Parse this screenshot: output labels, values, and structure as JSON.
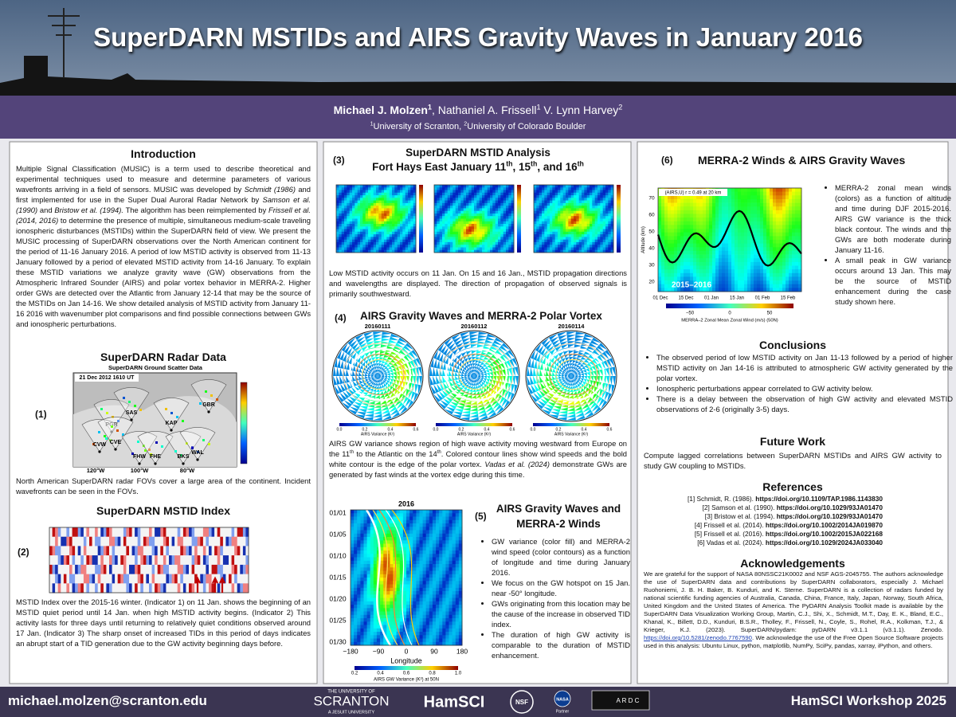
{
  "header": {
    "title": "SuperDARN MSTIDs and AIRS Gravity Waves in January 2016",
    "authors": [
      {
        "t": "Michael J. Molzen",
        "b": true
      },
      {
        "t": "1",
        "sup": true,
        "b": true
      },
      {
        "t": ", Nathaniel A. Frissell"
      },
      {
        "t": "1",
        "sup": true
      },
      {
        "t": " V. Lynn Harvey"
      },
      {
        "t": "2",
        "sup": true
      }
    ],
    "affiliations": [
      {
        "t": "1",
        "sup": true
      },
      {
        "t": "University of Scranton, "
      },
      {
        "t": "2",
        "sup": true
      },
      {
        "t": "University of Colorado Boulder"
      }
    ]
  },
  "intro": {
    "heading": "Introduction",
    "text": [
      {
        "t": "Multiple Signal Classification (MUSIC) is a term used to describe theoretical and experimental techniques used to measure and determine parameters of various wavefronts arriving in a field of sensors. MUSIC was developed by "
      },
      {
        "t": "Schmidt (1986)",
        "i": true
      },
      {
        "t": " and first implemented for use in the Super Dual Auroral Radar Network by "
      },
      {
        "t": "Samson et al. (1990)",
        "i": true
      },
      {
        "t": " and "
      },
      {
        "t": "Bristow et al. (1994).",
        "i": true
      },
      {
        "t": " The algorithm has been reimplemented by "
      },
      {
        "t": "Frissell et al. (2014, 2016)",
        "i": true
      },
      {
        "t": " to determine the presence of multiple, simultaneous medium-scale traveling ionospheric disturbances (MSTIDs) within the SuperDARN field of view. We present the MUSIC processing of SuperDARN observations over the North American continent for the period of 11-16 January 2016. A period of low MSTID activity is observed from 11-13 January followed by a period of elevated MSTID activity from 14-16 January. To explain these MSTID variations we analyze gravity wave (GW) observations from the Atmospheric Infrared Sounder (AIRS) and polar vortex behavior in MERRA-2. Higher order GWs are detected over the Atlantic from January 12-14 that may be the source of the MSTIDs on Jan 14-16. We show detailed analysis of MSTID activity from January 11-16 2016 with wavenumber plot comparisons and find possible connections between GWs and ionospheric perturbations."
      }
    ]
  },
  "radar": {
    "heading": "SuperDARN Radar Data",
    "label": "(1)",
    "figure": {
      "title": "SuperDARN Ground Scatter Data",
      "time": "21 Dec 2012 1610 UT",
      "radars": [
        "PGR",
        "SAS",
        "KAP",
        "GBR",
        "CVW",
        "CVE",
        "FHW",
        "FHE",
        "BKS",
        "WAL"
      ],
      "longitudes": [
        "120°W",
        "100°W",
        "80°W"
      ]
    },
    "caption": "North American SuperDARN radar FOVs cover a large area of the continent. Incident wavefronts can be seen in the FOVs."
  },
  "index": {
    "heading": "SuperDARN MSTID Index",
    "label": "(2)",
    "caption": "MSTID Index over the 2015-16 winter. (Indicator 1) on 11 Jan. shows the beginning of an MSTID quiet period until 14 Jan. when high MSTID activity begins. (Indicator 2) This activity lasts for three days until returning to relatively quiet conditions observed around 17 Jan. (Indicator 3) The sharp onset of increased TIDs in this period of days indicates an abrupt start of a TID generation due to the GW activity beginning days before."
  },
  "analysis": {
    "label": "(3)",
    "heading": "SuperDARN MSTID Analysis",
    "heading2": [
      {
        "t": "Fort Hays East January 11"
      },
      {
        "t": "th",
        "sup": true
      },
      {
        "t": ", 15"
      },
      {
        "t": "th",
        "sup": true
      },
      {
        "t": ", and 16"
      },
      {
        "t": "th",
        "sup": true
      }
    ],
    "text": "Low MSTID activity occurs on 11 Jan. On 15 and 16 Jan., MSTID propagation directions and wavelengths are displayed. The direction of propagation of observed signals is primarily southwestward."
  },
  "vortex": {
    "label": "(4)",
    "heading": "AIRS Gravity Waves and MERRA-2 Polar Vortex",
    "dates": [
      "20160111",
      "20160112",
      "20160114"
    ],
    "colorbar_ticks": [
      "0.0",
      "0.2",
      "0.4",
      "0.6"
    ],
    "colorbar_label": "AIRS Variance (K²)",
    "text": [
      {
        "t": "AIRS GW variance shows region of high wave activity moving westward from Europe on the 11"
      },
      {
        "t": "th",
        "sup": true
      },
      {
        "t": " to the Atlantic on the 14"
      },
      {
        "t": "th",
        "sup": true
      },
      {
        "t": ". Colored contour lines show wind speeds and the bold white contour is the edge of the polar vortex. "
      },
      {
        "t": "Vadas et al. (2024)",
        "i": true
      },
      {
        "t": " demonstrate GWs are generated by fast winds at the vortex edge during this time."
      }
    ]
  },
  "hovmoller": {
    "year": "2016",
    "dates": [
      "01/01",
      "01/05",
      "01/10",
      "01/15",
      "01/20",
      "01/25",
      "01/30"
    ],
    "longitudes": [
      "−180",
      "−90",
      "0",
      "90",
      "180"
    ],
    "x_label": "Longitude",
    "colorbar_ticks": [
      "0.2",
      "0.4",
      "0.6",
      "0.8",
      "1.0"
    ],
    "colorbar_label": "AIRS GW Variance (K²) at 50N"
  },
  "airs_winds": {
    "label": "(5)",
    "heading": [
      "AIRS Gravity Waves and",
      "MERRA-2 Winds"
    ],
    "bullets": [
      "GW variance (color fill) and MERRA-2 wind speed (color contours) as a function of longitude and time during January 2016.",
      "We focus on the GW hotspot on 15 Jan. near -50° longitude.",
      "GWs originating from this location may be the cause of the increase in observed TID index.",
      "The duration of high GW activity is comparable to the duration of MSTID enhancement."
    ]
  },
  "merra": {
    "label": "(6)",
    "heading": "MERRA-2 Winds & AIRS Gravity Waves",
    "figure": {
      "annotation": "(AIRS,U) r = 0.49 at 20 km",
      "period": "2015–2016",
      "x_labels": [
        "01 Dec",
        "15 Dec",
        "01 Jan",
        "15 Jan",
        "01 Feb",
        "15 Feb"
      ],
      "y_labels": [
        "20",
        "30",
        "40",
        "50",
        "60",
        "70"
      ],
      "y_label": "Altitude (km)",
      "colorbar_ticks": [
        "−50",
        "0",
        "50"
      ],
      "colorbar_label": "MERRA–2 Zonal Mean Zonal Wind (m/s) (50N)"
    },
    "bullets": [
      "MERRA-2 zonal mean winds (colors) as a function of altitude and time during DJF 2015-2016. AIRS GW variance is the thick black contour. The winds and the GWs are both moderate during January 11-16.",
      "A small peak in GW variance occurs around 13 Jan. This may be the source of MSTID enhancement during the case study shown here."
    ]
  },
  "conclusions": {
    "heading": "Conclusions",
    "bullets": [
      "The observed period of low MSTID activity on Jan 11-13 followed by a period of higher MSTID activity on Jan 14-16 is attributed to atmospheric GW activity generated by the polar vortex.",
      "Ionospheric perturbations appear correlated to GW activity below.",
      "There is a delay between the observation of high GW activity and elevated MSTID observations of 2-6 (originally 3-5) days."
    ]
  },
  "future": {
    "heading": "Future Work",
    "text": "Compute lagged correlations between SuperDARN MSTIDs and AIRS GW activity to study GW coupling to MSTIDs."
  },
  "references": {
    "heading": "References",
    "items": [
      [
        {
          "t": "[1] Schmidt, R. (1986). "
        },
        {
          "t": "https://doi.org/10.1109/TAP.1986.1143830",
          "b": true
        }
      ],
      [
        {
          "t": "[2] Samson et al. (1990). "
        },
        {
          "t": "https://doi.org/10.1029/93JA01470",
          "b": true
        }
      ],
      [
        {
          "t": "[3] Bristow et al. (1994). "
        },
        {
          "t": "https://doi.org/10.1029/93JA01470",
          "b": true
        }
      ],
      [
        {
          "t": "[4] Frissell et al. (2014). "
        },
        {
          "t": "https://doi.org/10.1002/2014JA019870",
          "b": true
        }
      ],
      [
        {
          "t": "[5] Frissell et al. (2016). "
        },
        {
          "t": "https://doi.org/10.1002/2015JA022168",
          "b": true
        }
      ],
      [
        {
          "t": "[6] Vadas et al. (2024). "
        },
        {
          "t": "https://doi.org/10.1029/2024JA033040",
          "b": true
        }
      ]
    ]
  },
  "acknowledgements": {
    "heading": "Acknowledgements",
    "text": [
      {
        "t": "We are grateful for the support of NASA 80NSSC21K0002 and NSF AGS-2045755. The authors acknowledge the use of SuperDARN data and contributions by SuperDARN collaborators, especially J. Michael Ruohoniemi, J. B. H. Baker, B. Kunduri, and K. Sterne. SuperDARN is a collection of radars funded by national scientific funding agencies of Australia, Canada, China, France, Italy, Japan, Norway, South Africa, United Kingdom and the United States of America. The PyDARN Analysis Toolkit made is available by the SuperDARN Data Visualization Working Group, Martin, C.J., Shi, X., Schmidt, M.T., Day, E. K., Bland, E.C., Khanal, K., Billett, D.D., Kunduri, B.S.R., Tholley, F., Frissell, N., Coyle, S., Rohel, R.A., Kolkman, T.J., & Krieger, K.J. (2023). SuperDARN/pydarn: pyDARN v3.1.1 (v3.1.1). Zenodo. "
      },
      {
        "t": "https://doi.org/10.5281/zenodo.7767590",
        "u": true
      },
      {
        "t": ". We acknowledge the use of the Free Open Source Software projects used in this analysis: Ubuntu Linux, python, matplotlib, NumPy, SciPy, pandas, xarray, iPython, and others."
      }
    ]
  },
  "footer": {
    "email": "michael.molzen@scranton.edu",
    "event": "HamSCI Workshop 2025",
    "logos": {
      "scranton_top": "THE UNIVERSITY OF",
      "scranton": "SCRANTON",
      "scranton_bottom": "A JESUIT UNIVERSITY",
      "hamsci": "HamSCI",
      "nsf": "NSF",
      "nasa": "NASA",
      "nasa_sub": "Partner",
      "ardc": "A R D C"
    }
  }
}
